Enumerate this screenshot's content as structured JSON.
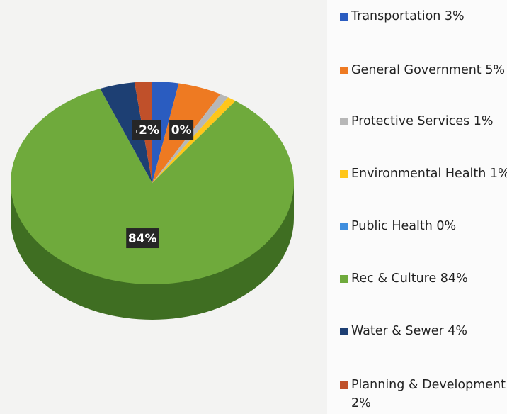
{
  "chart_data": {
    "type": "pie",
    "categories": [
      "Transportation 3%",
      "General Government 5%",
      "Protective Services 1%",
      "Environmental Health 1%",
      "Public Health 0%",
      "Rec & Culture 84%",
      "Water & Sewer 4%",
      "Planning & Development 2%"
    ],
    "values": [
      3,
      5,
      1,
      1,
      0,
      84,
      4,
      2
    ],
    "value_labels": [
      null,
      null,
      null,
      null,
      "0%",
      "84%",
      "4",
      "2%"
    ],
    "colors": [
      "#2a5cc0",
      "#ee7a22",
      "#b7b7b7",
      "#ffc61a",
      "#3e8ede",
      "#6faa3c",
      "#1d3f73",
      "#c0502a"
    ],
    "legend": "right"
  }
}
